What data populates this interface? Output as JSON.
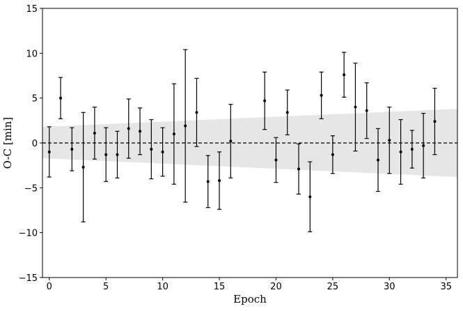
{
  "chart_data": {
    "type": "scatter",
    "title": "",
    "xlabel": "Epoch",
    "ylabel": "O-C [min]",
    "xlim": [
      -0.6,
      36
    ],
    "ylim": [
      -15,
      15
    ],
    "xticks": [
      0,
      5,
      10,
      15,
      20,
      25,
      30,
      35
    ],
    "yticks": [
      -15,
      -10,
      -5,
      0,
      5,
      10,
      15
    ],
    "ytick_labels": [
      "−15",
      "−10",
      "−5",
      "0",
      "5",
      "10",
      "15"
    ],
    "grid": false,
    "legend": "none",
    "reference_line": {
      "y": 0,
      "style": "dashed",
      "color": "#000000"
    },
    "confidence_band": {
      "color": "#e6e6e6",
      "x": [
        -0.6,
        36
      ],
      "upper": [
        1.8,
        3.8
      ],
      "lower": [
        -1.7,
        -3.8
      ]
    },
    "series": [
      {
        "marker_color": "#000000",
        "points": [
          {
            "x": 0,
            "y": -1.0,
            "err": 2.8
          },
          {
            "x": 1,
            "y": 5.0,
            "err": 2.3
          },
          {
            "x": 2,
            "y": -0.7,
            "err": 2.4
          },
          {
            "x": 3,
            "y": -2.7,
            "err": 6.1
          },
          {
            "x": 4,
            "y": 1.1,
            "err": 2.9
          },
          {
            "x": 5,
            "y": -1.3,
            "err": 3.0
          },
          {
            "x": 6,
            "y": -1.3,
            "err": 2.6
          },
          {
            "x": 7,
            "y": 1.6,
            "err": 3.3
          },
          {
            "x": 8,
            "y": 1.3,
            "err": 2.6
          },
          {
            "x": 9,
            "y": -0.7,
            "err": 3.3
          },
          {
            "x": 10,
            "y": -1.0,
            "err": 2.7
          },
          {
            "x": 11,
            "y": 1.0,
            "err": 5.6
          },
          {
            "x": 12,
            "y": 1.9,
            "err": 8.5
          },
          {
            "x": 13,
            "y": 3.4,
            "err": 3.8
          },
          {
            "x": 14,
            "y": -4.3,
            "err": 2.9
          },
          {
            "x": 15,
            "y": -4.2,
            "err": 3.2
          },
          {
            "x": 16,
            "y": 0.2,
            "err": 4.1
          },
          {
            "x": 19,
            "y": 4.7,
            "err": 3.2
          },
          {
            "x": 20,
            "y": -1.9,
            "err": 2.5
          },
          {
            "x": 21,
            "y": 3.4,
            "err": 2.5
          },
          {
            "x": 22,
            "y": -2.9,
            "err": 2.8
          },
          {
            "x": 23,
            "y": -6.0,
            "err": 3.9
          },
          {
            "x": 24,
            "y": 5.3,
            "err": 2.6
          },
          {
            "x": 25,
            "y": -1.3,
            "err": 2.1
          },
          {
            "x": 26,
            "y": 7.6,
            "err": 2.5
          },
          {
            "x": 27,
            "y": 4.0,
            "err": 4.9
          },
          {
            "x": 28,
            "y": 3.6,
            "err": 3.1
          },
          {
            "x": 29,
            "y": -1.9,
            "err": 3.5
          },
          {
            "x": 30,
            "y": 0.3,
            "err": 3.7
          },
          {
            "x": 31,
            "y": -1.0,
            "err": 3.6
          },
          {
            "x": 32,
            "y": -0.7,
            "err": 2.1
          },
          {
            "x": 33,
            "y": -0.3,
            "err": 3.6
          },
          {
            "x": 34,
            "y": 2.4,
            "err": 3.7
          }
        ]
      }
    ]
  }
}
